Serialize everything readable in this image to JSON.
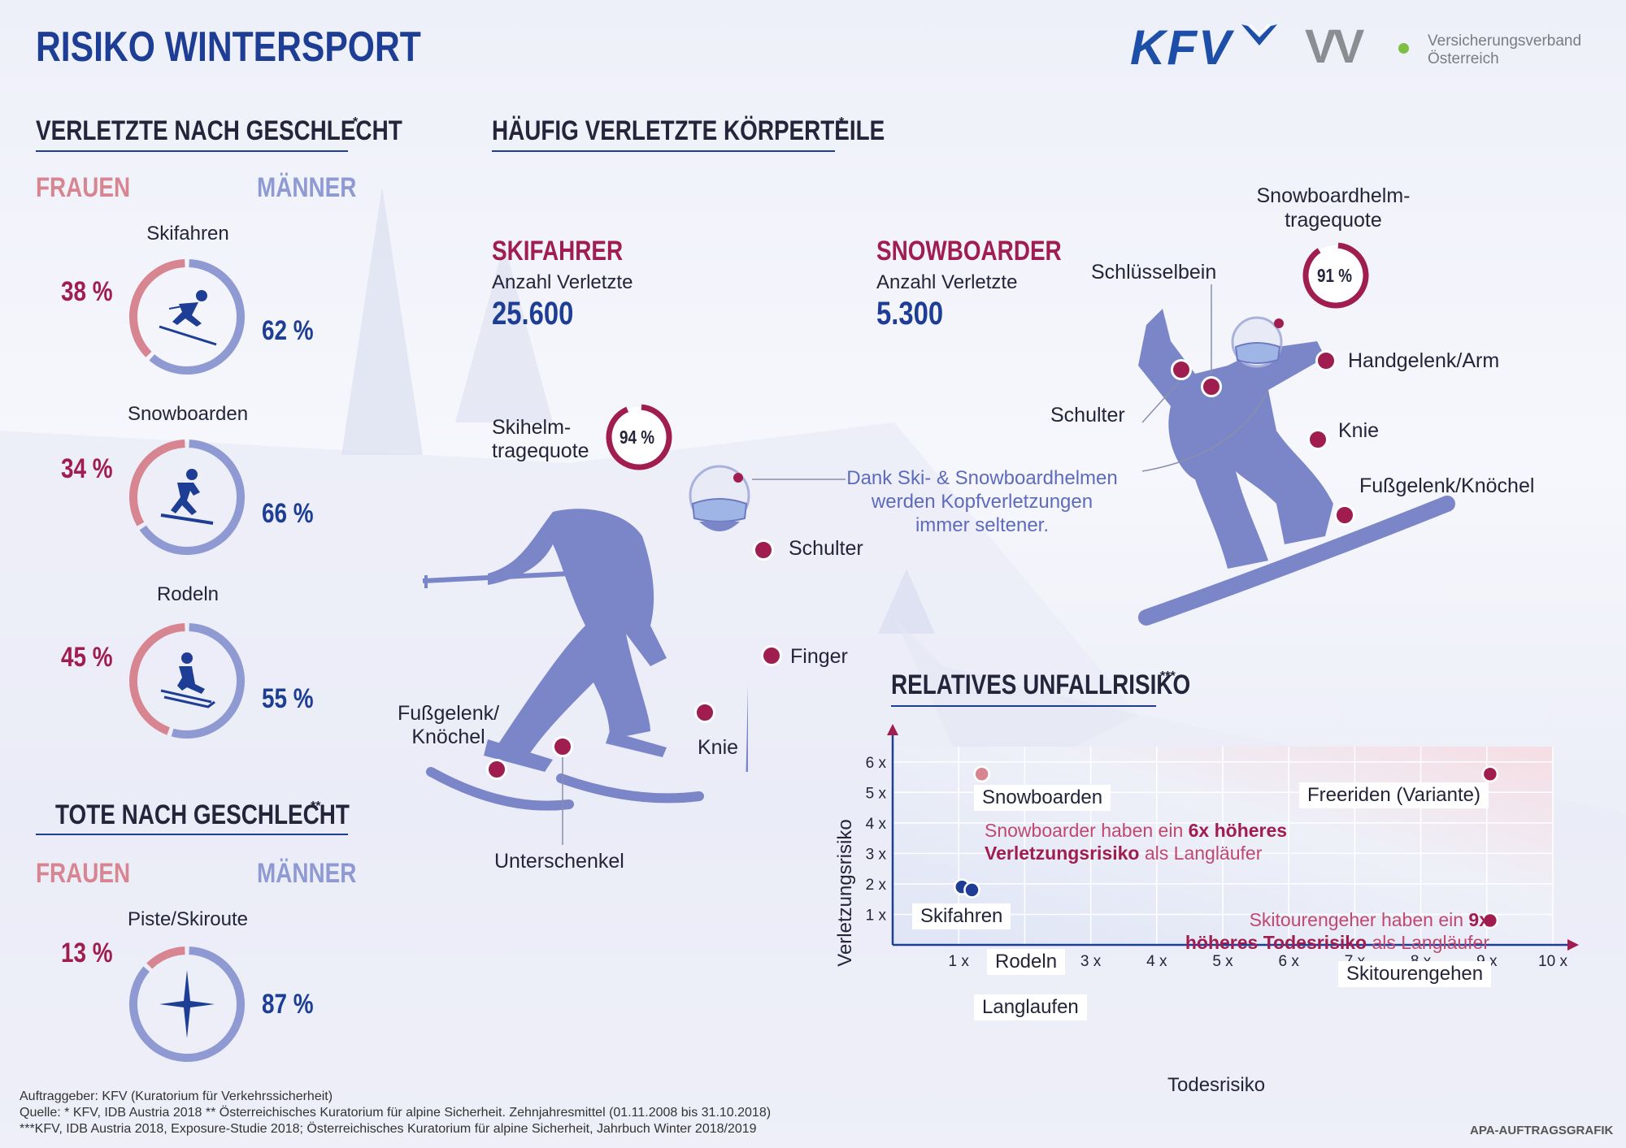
{
  "title": "RISIKO WINTERSPORT",
  "logos": {
    "kfv": "KFV",
    "vv": "VV",
    "vv_text_1": "Versicherungsverband",
    "vv_text_2": "Österreich"
  },
  "verletzte": {
    "title": "VERLETZTE NACH GESCHLECHT",
    "star": "*",
    "frauen": "FRAUEN",
    "maenner": "MÄNNER",
    "items": [
      {
        "label": "Skifahren",
        "frauen": "38 %",
        "maenner": "62 %",
        "frauen_share": 38,
        "icon": "skier-icon"
      },
      {
        "label": "Snowboarden",
        "frauen": "34 %",
        "maenner": "66 %",
        "frauen_share": 34,
        "icon": "snowboarder-icon"
      },
      {
        "label": "Rodeln",
        "frauen": "45 %",
        "maenner": "55 %",
        "frauen_share": 45,
        "icon": "sled-icon"
      }
    ]
  },
  "tote": {
    "title": "TOTE NACH GESCHLECHT",
    "star": "**",
    "frauen": "FRAUEN",
    "maenner": "MÄNNER",
    "label": "Piste/Skiroute",
    "frauen_pct": "13 %",
    "maenner_pct": "87 %",
    "frauen_share": 13,
    "icon": "cross-star-icon"
  },
  "koerperteile": {
    "title": "HÄUFIG VERLETZTE KÖRPERTEILE",
    "star": "*",
    "skifahrer": {
      "title": "SKIFAHRER",
      "sub": "Anzahl Verletzte",
      "count": "25.600",
      "helm_label_1": "Skihelm-",
      "helm_label_2": "tragequote",
      "helm_pct": "94 %",
      "helm_share": 94,
      "labels": {
        "schulter": "Schulter",
        "finger": "Finger",
        "knie": "Knie",
        "fuss_1": "Fußgelenk/",
        "fuss_2": "Knöchel",
        "unterschenkel": "Unterschenkel"
      }
    },
    "snowboarder": {
      "title": "SNOWBOARDER",
      "sub": "Anzahl Verletzte",
      "count": "5.300",
      "helm_label_1": "Snowboardhelm-",
      "helm_label_2": "tragequote",
      "helm_pct": "91 %",
      "helm_share": 91,
      "labels": {
        "schluesselbein": "Schlüsselbein",
        "handgelenk": "Handgelenk/Arm",
        "schulter": "Schulter",
        "knie": "Knie",
        "fuss": "Fußgelenk/Knöchel"
      }
    },
    "note_1": "Dank Ski- & Snowboardhelmen",
    "note_2": "werden Kopfverletzungen",
    "note_3": "immer seltener."
  },
  "chart_data": {
    "type": "scatter",
    "title": "RELATIVES UNFALLRISIKO",
    "title_star": "***",
    "xlabel": "Todesrisiko",
    "ylabel": "Verletzungsrisiko",
    "xlim": [
      0,
      10
    ],
    "ylim": [
      0,
      6.5
    ],
    "xticks": [
      "1 x",
      "2 x",
      "3 x",
      "4 x",
      "5 x",
      "6 x",
      "7 x",
      "8 x",
      "9 x",
      "10 x"
    ],
    "yticks": [
      "1 x",
      "2 x",
      "3 x",
      "4 x",
      "5 x",
      "6 x"
    ],
    "points": [
      {
        "name": "Snowboarden",
        "x": 1.35,
        "y": 5.6,
        "color": "#d88592"
      },
      {
        "name": "Freeriden (Variante)",
        "x": 9.05,
        "y": 5.6,
        "color": "#a01d4f"
      },
      {
        "name": "Skifahren",
        "x": 1.05,
        "y": 1.9,
        "color": "#1d3e94"
      },
      {
        "name": "Rodeln",
        "x": 1.2,
        "y": 1.8,
        "color": "#1d3e94"
      },
      {
        "name": "Langlaufen",
        "x": 1.0,
        "y": 1.0,
        "color": "#1d3e94"
      },
      {
        "name": "Skitourengehen",
        "x": 9.05,
        "y": 0.8,
        "color": "#a01d4f"
      }
    ],
    "note_a_1": "Snowboarder haben ein ",
    "note_a_b1": "6x höheres",
    "note_a_b2": "Verletzungsrisiko",
    "note_a_2": " als Langläufer",
    "note_b_1": "Skitourengeher haben ein ",
    "note_b_b1": "9x",
    "note_b_b2": "höheres Todesrisiko",
    "note_b_2": " als Langläufer"
  },
  "footer": {
    "line1": "Auftraggeber: KFV (Kuratorium für Verkehrssicherheit)",
    "line2": "Quelle: * KFV, IDB Austria 2018    ** Österreichisches Kuratorium für alpine Sicherheit. Zehnjahresmittel (01.11.2008 bis 31.10.2018)",
    "line3": "***KFV, IDB Austria 2018, Exposure-Studie 2018; Österreichisches Kuratorium für alpine Sicherheit, Jahrbuch Winter 2018/2019",
    "credit": "APA-AUFTRAGSGRAFIK"
  },
  "colors": {
    "frauen": "#d88592",
    "maenner": "#8f99d2",
    "accent_red": "#a01d4f",
    "accent_blue": "#1d3e94",
    "figure": "#7b86c8"
  }
}
